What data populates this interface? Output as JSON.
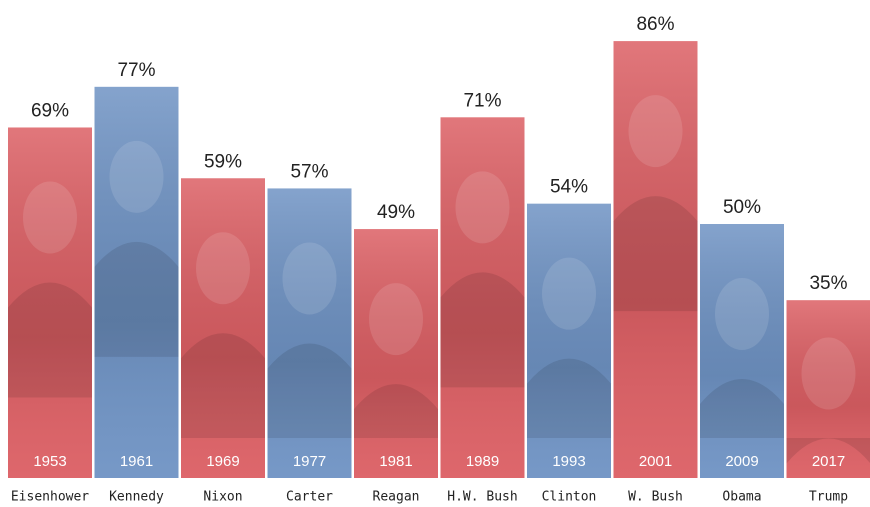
{
  "chart_data": {
    "type": "bar",
    "categories": [
      "Eisenhower",
      "Kennedy",
      "Nixon",
      "Carter",
      "Reagan",
      "H.W. Bush",
      "Clinton",
      "W. Bush",
      "Obama",
      "Trump"
    ],
    "years": [
      "1953",
      "1961",
      "1969",
      "1977",
      "1981",
      "1989",
      "1993",
      "2001",
      "2009",
      "2017"
    ],
    "values": [
      69,
      77,
      59,
      57,
      49,
      71,
      54,
      86,
      50,
      35
    ],
    "value_labels": [
      "69%",
      "77%",
      "59%",
      "57%",
      "49%",
      "71%",
      "54%",
      "86%",
      "50%",
      "35%"
    ],
    "colors": [
      "#dc5f64",
      "#6f93c4",
      "#dc5f64",
      "#6f93c4",
      "#dc5f64",
      "#dc5f64",
      "#6f93c4",
      "#dc5f64",
      "#6f93c4",
      "#dc5f64"
    ]
  }
}
